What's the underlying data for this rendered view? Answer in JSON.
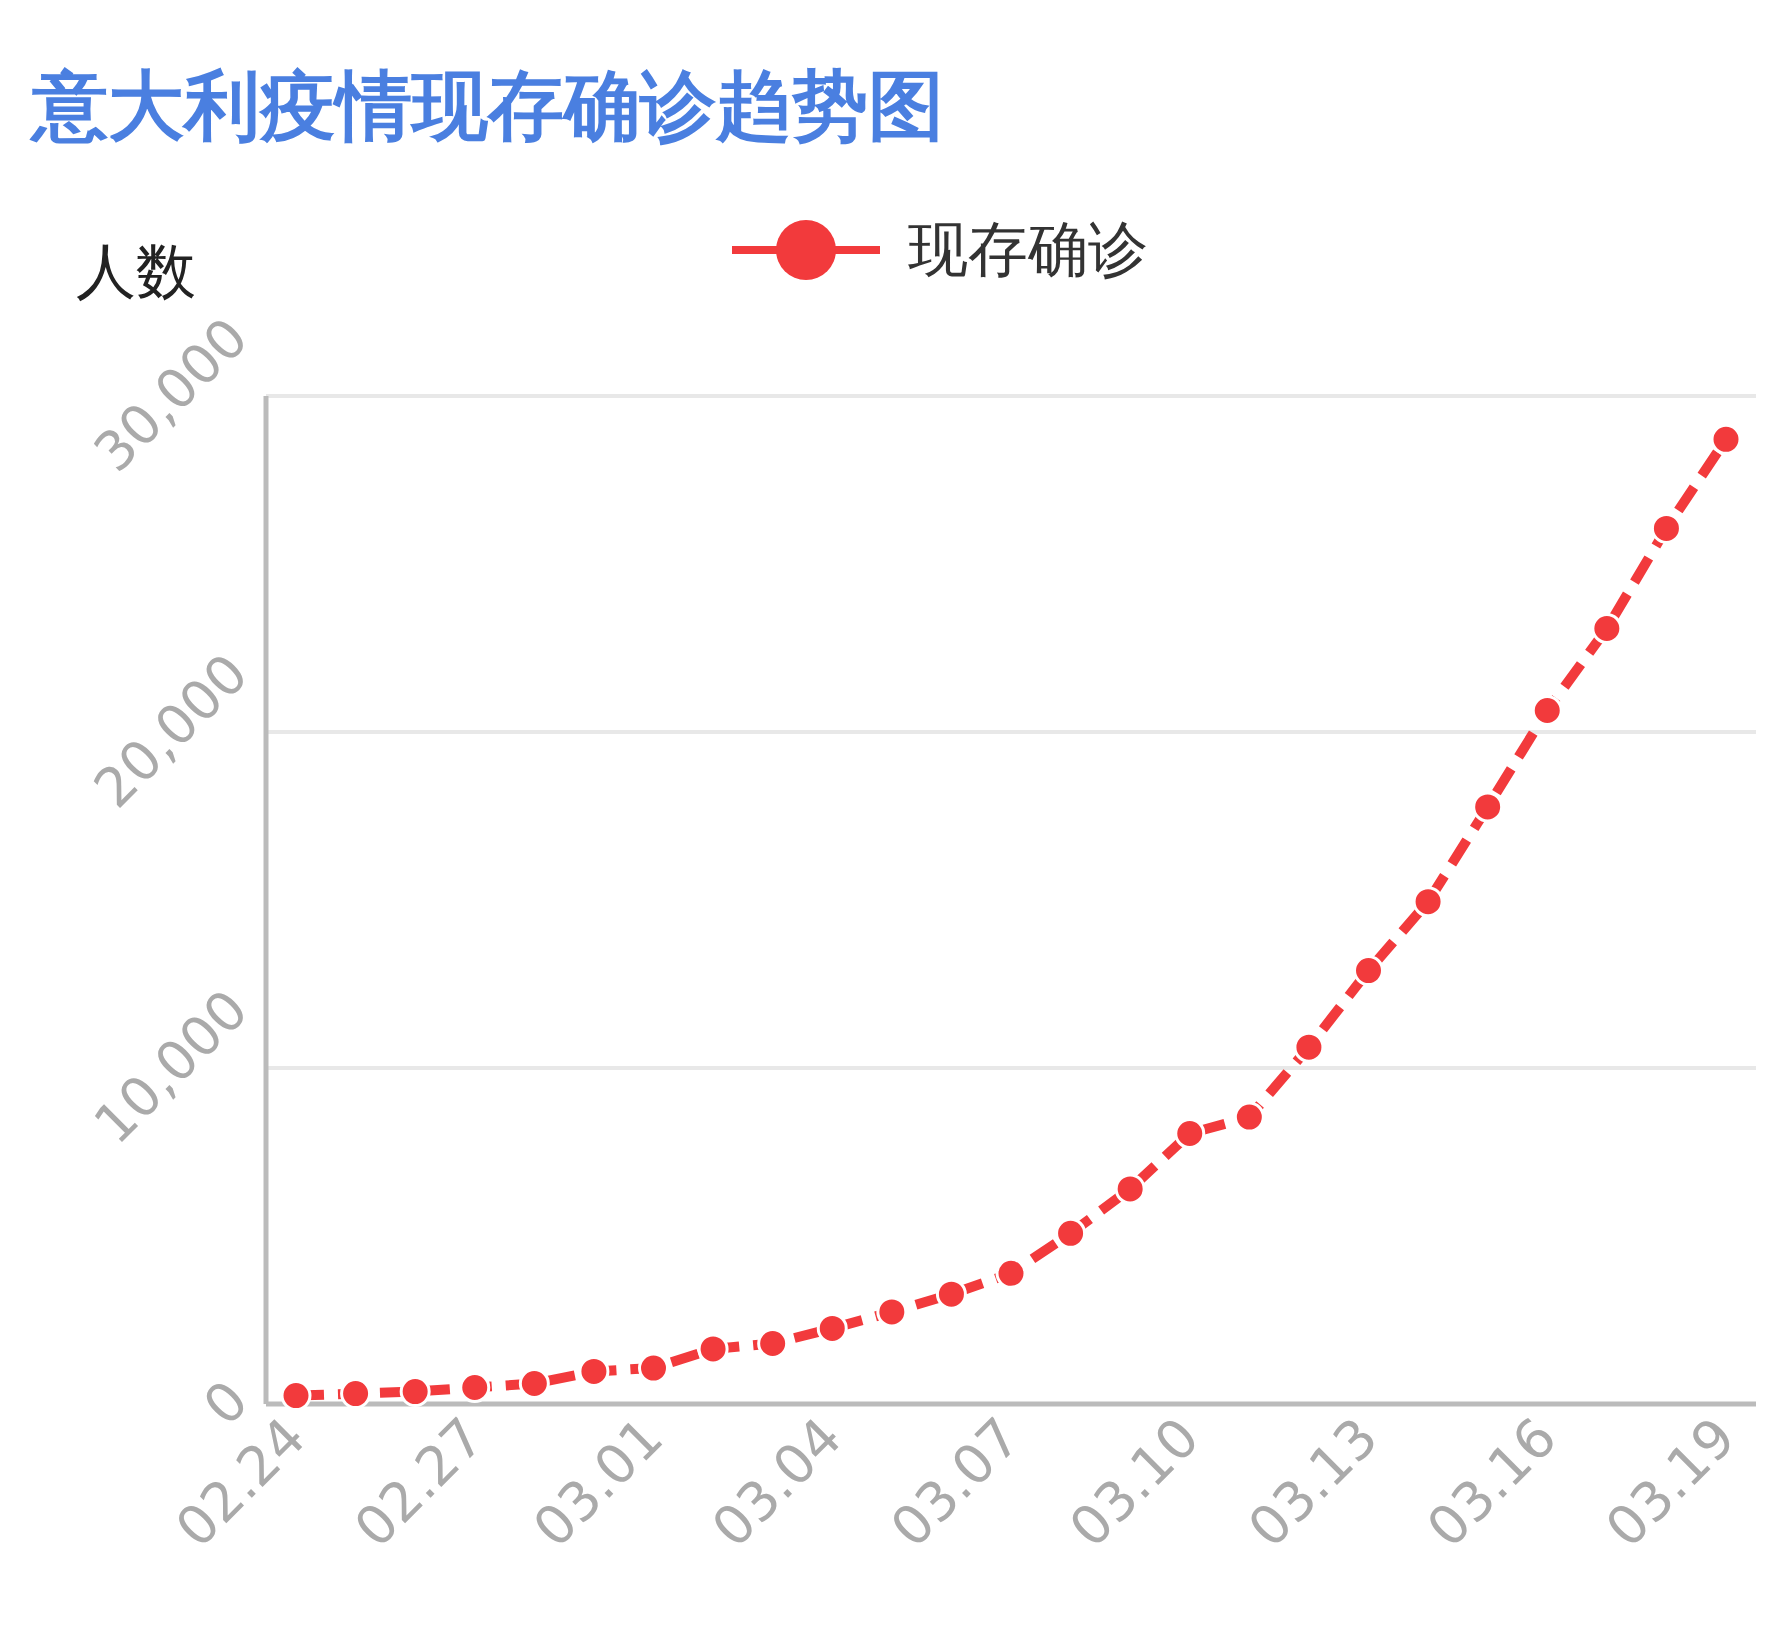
{
  "chart_data": {
    "type": "line",
    "title": "意大利疫情现存确诊趋势图",
    "ylabel": "人数",
    "categories": [
      "02.24",
      null,
      null,
      "02.27",
      null,
      null,
      "03.01",
      null,
      null,
      "03.04",
      null,
      null,
      "03.07",
      null,
      null,
      "03.10",
      null,
      null,
      "03.13",
      null,
      null,
      "03.16",
      null,
      null,
      "03.19"
    ],
    "series": [
      {
        "name": "现存确诊",
        "color": "#f23a3c",
        "values": [
          250,
          310,
          370,
          490,
          610,
          970,
          1070,
          1640,
          1800,
          2250,
          2740,
          3270,
          3890,
          5080,
          6400,
          8050,
          8540,
          10620,
          12900,
          14950,
          17770,
          20640,
          23080,
          26060,
          28710
        ]
      }
    ],
    "ylim": [
      0,
      30000
    ],
    "yticks": [
      0,
      {
        "value": 10000,
        "label": "10,000"
      },
      {
        "value": 20000,
        "label": "20,000"
      },
      {
        "value": 30000,
        "label": "30,000"
      }
    ],
    "grid": "y",
    "legend": "top",
    "marker": "circle",
    "line_style": "dashed"
  }
}
